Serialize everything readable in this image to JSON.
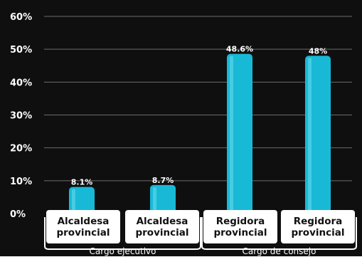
{
  "colors": {
    "background": "#0f0f0f",
    "bar": "#18b9d6",
    "bar_highlight": "#6fdcf0",
    "grid": "#6c6c6c",
    "label_box": "#ffffff",
    "label_text": "#111111"
  },
  "chart_data": {
    "type": "bar",
    "categories": [
      [
        "Alcaldesa",
        "provincial"
      ],
      [
        "Alcaldesa",
        "provincial"
      ],
      [
        "Regidora",
        "provincial"
      ],
      [
        "Regidora",
        "provincial"
      ]
    ],
    "values": [
      8.1,
      8.7,
      48.6,
      48
    ],
    "data_labels": [
      "8.1%",
      "8.7%",
      "48.6%",
      "48%"
    ],
    "groups": [
      {
        "label": "Cargo ejecutivo",
        "members": [
          0,
          1
        ]
      },
      {
        "label": "Cargo de consejo",
        "members": [
          2,
          3
        ]
      }
    ],
    "yticks": [
      "0%",
      "10%",
      "20%",
      "30%",
      "40%",
      "50%",
      "60%"
    ],
    "ylim": [
      0,
      60
    ],
    "grid": true,
    "title": "",
    "xlabel": "",
    "ylabel": ""
  }
}
